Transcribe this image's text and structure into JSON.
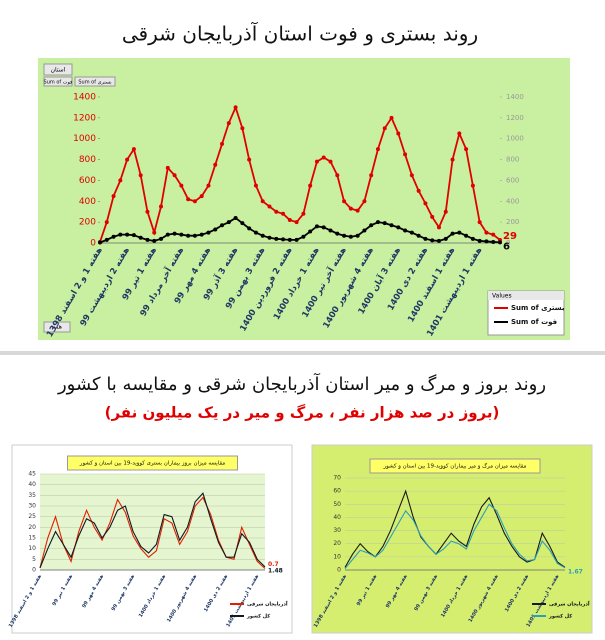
{
  "heading": "روند بروز و مرگ و میر استان آذربایجان شرقی و مقایسه با کشور",
  "subheading": "(بروز در صد هزار نفر ، مرگ و میر در یک میلیون نفر)",
  "chart1_controls": {
    "filter": "استان",
    "field_fot": "Sum of فوت",
    "field_bastari": "Sum of بستری",
    "legend_header": "Values",
    "all": "همه"
  },
  "chart_data": [
    {
      "type": "line",
      "title": "روند بستری و فوت استان آذربایجان شرقی",
      "categories": [
        "هفته 1 و 2 اسفند 1398",
        null,
        null,
        null,
        "هفته 2 اردیبهشت 99",
        null,
        null,
        null,
        "هفته 1 تیر 99",
        null,
        null,
        null,
        "هفته آخر مرداد 99",
        null,
        null,
        null,
        "هفته 4 مهر 99",
        null,
        null,
        null,
        "هفته 3 آذر 99",
        null,
        null,
        null,
        "هفته 3 بهمن 99",
        null,
        null,
        null,
        "هفته 2 فروردین 1400",
        null,
        null,
        null,
        "هفته 1 خرداد 1400",
        null,
        null,
        null,
        "هفته آخر تیر 1400",
        null,
        null,
        null,
        "هفته 4 شهریور 1400",
        null,
        null,
        null,
        "هفته 3 آبان 1400",
        null,
        null,
        null,
        "هفته 2 دی 1400",
        null,
        null,
        null,
        "هفته 1 اسفند 1400",
        null,
        null,
        null,
        "هفته 1 اردیبهشت 1401",
        null,
        null,
        null
      ],
      "ylim": [
        0,
        1400
      ],
      "yticks": [
        0,
        200,
        400,
        600,
        800,
        1000,
        1200,
        1400
      ],
      "y2lim": [
        0,
        1400
      ],
      "y2ticks": [
        0,
        200,
        400,
        600,
        800,
        1000,
        1200,
        1400
      ],
      "grid": false,
      "series": [
        {
          "name": "Sum of بستری",
          "color": "#e00000",
          "markers": true,
          "label_last": true,
          "values": [
            10,
            200,
            450,
            600,
            800,
            900,
            650,
            300,
            100,
            350,
            720,
            650,
            550,
            420,
            400,
            450,
            550,
            750,
            950,
            1150,
            1300,
            1100,
            800,
            550,
            400,
            350,
            300,
            280,
            220,
            200,
            280,
            550,
            780,
            820,
            780,
            650,
            400,
            330,
            310,
            400,
            650,
            900,
            1100,
            1200,
            1050,
            850,
            650,
            500,
            380,
            250,
            150,
            300,
            800,
            1050,
            900,
            550,
            200,
            100,
            80,
            29
          ]
        },
        {
          "name": "Sum of فوت",
          "color": "#000000",
          "markers": true,
          "label_last": true,
          "axis": "y2",
          "values": [
            5,
            30,
            60,
            80,
            80,
            75,
            50,
            30,
            20,
            40,
            80,
            90,
            80,
            70,
            70,
            80,
            100,
            130,
            170,
            200,
            240,
            190,
            140,
            100,
            70,
            50,
            40,
            35,
            30,
            30,
            60,
            110,
            160,
            150,
            120,
            90,
            70,
            60,
            70,
            120,
            170,
            200,
            190,
            170,
            150,
            120,
            100,
            70,
            40,
            25,
            20,
            40,
            90,
            100,
            70,
            40,
            20,
            15,
            10,
            6
          ]
        }
      ]
    },
    {
      "type": "line",
      "title": "مقایسه میزان بروز بیماران بستری کووید-19 بین استان و کشور",
      "categories": [
        "هفته 1 و 2 اسفند 1398",
        null,
        null,
        null,
        "هفته 1 تیر 99",
        null,
        null,
        null,
        "هفته 4 مهر 99",
        null,
        null,
        null,
        "هفته 3 بهمن 99",
        null,
        null,
        null,
        "هفته 1 خرداد 1400",
        null,
        null,
        null,
        "هفته 4 شهریور 1400",
        null,
        null,
        null,
        "هفته 2 دی 1400",
        null,
        null,
        null,
        "هفته 1 اردیبهشت 1401",
        null
      ],
      "ylim": [
        0,
        45
      ],
      "yticks": [
        0,
        5,
        10,
        15,
        20,
        25,
        30,
        35,
        40,
        45
      ],
      "grid": true,
      "series": [
        {
          "name": "آذربایجان شرقی",
          "color": "#e02000",
          "markers": false,
          "label_last": true,
          "values": [
            1,
            15,
            25,
            12,
            4,
            18,
            28,
            20,
            14,
            22,
            33,
            27,
            16,
            10,
            6,
            9,
            24,
            22,
            12,
            18,
            30,
            34,
            26,
            14,
            6,
            5,
            20,
            12,
            4,
            0.7
          ]
        },
        {
          "name": "کل کشور",
          "color": "#101820",
          "markers": false,
          "label_last": true,
          "values": [
            1,
            10,
            18,
            12,
            6,
            16,
            24,
            22,
            15,
            20,
            28,
            30,
            18,
            11,
            8,
            12,
            26,
            25,
            14,
            20,
            32,
            36,
            24,
            13,
            6,
            6,
            17,
            13,
            5,
            1.48
          ]
        }
      ]
    },
    {
      "type": "line",
      "title": "مقایسه میزان مرگ و میر بیماران کووید-19 بین استان و کشور",
      "categories": [
        "هفته 1 و 2 اسفند 1398",
        null,
        null,
        null,
        "هفته 1 تیر 99",
        null,
        null,
        null,
        "هفته 4 مهر 99",
        null,
        null,
        null,
        "هفته 3 بهمن 99",
        null,
        null,
        null,
        "هفته 1 خرداد 1400",
        null,
        null,
        null,
        "هفته 4 شهریور 1400",
        null,
        null,
        null,
        "هفته 2 دی 1400",
        null,
        null,
        null,
        "هفته 1 اردیبهشت 1401",
        null
      ],
      "ylim": [
        0,
        70
      ],
      "yticks": [
        0,
        10,
        20,
        30,
        40,
        50,
        60,
        70
      ],
      "grid": true,
      "series": [
        {
          "name": "آذربایجان شرقی",
          "color": "#1a1a1a",
          "markers": false,
          "label_last": false,
          "values": [
            2,
            12,
            20,
            14,
            10,
            18,
            30,
            45,
            60,
            40,
            25,
            18,
            12,
            20,
            28,
            22,
            18,
            35,
            48,
            55,
            42,
            28,
            18,
            10,
            6,
            8,
            28,
            18,
            6,
            2
          ]
        },
        {
          "name": "کل کشور",
          "color": "#2aa0b8",
          "markers": false,
          "label_last": true,
          "values": [
            1,
            8,
            15,
            13,
            10,
            15,
            25,
            35,
            45,
            38,
            26,
            18,
            12,
            16,
            22,
            20,
            16,
            30,
            40,
            50,
            45,
            32,
            20,
            12,
            7,
            8,
            22,
            15,
            5,
            1.67
          ]
        }
      ]
    }
  ]
}
